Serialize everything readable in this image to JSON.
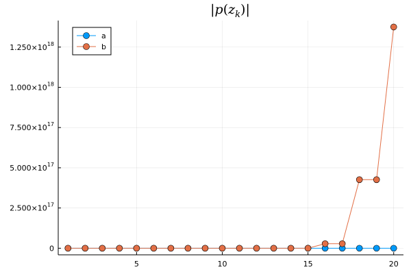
{
  "chart_data": {
    "type": "line",
    "title": "|p(z_k)|",
    "xlabel": "",
    "ylabel": "",
    "x": [
      1,
      2,
      3,
      4,
      5,
      6,
      7,
      8,
      9,
      10,
      11,
      12,
      13,
      14,
      15,
      16,
      17,
      18,
      19,
      20
    ],
    "xlim": [
      0.43,
      20.57
    ],
    "ylim": [
      -4.1e+16,
      1.415e+18
    ],
    "xticks": [
      5,
      10,
      15,
      20
    ],
    "xtick_labels": [
      "5",
      "10",
      "15",
      "20"
    ],
    "yticks": [
      0,
      2.5e+17,
      5e+17,
      7.5e+17,
      1e+18,
      1.25e+18
    ],
    "ytick_labels": [
      {
        "mant": "0",
        "exp": ""
      },
      {
        "mant": "2.500×10",
        "exp": "17"
      },
      {
        "mant": "5.000×10",
        "exp": "17"
      },
      {
        "mant": "7.500×10",
        "exp": "17"
      },
      {
        "mant": "1.000×10",
        "exp": "18"
      },
      {
        "mant": "1.250×10",
        "exp": "18"
      }
    ],
    "grid": true,
    "legend_position": "top-left",
    "series": [
      {
        "name": "a",
        "color": "#009AFA",
        "marker": "circle",
        "values": [
          0,
          0,
          0,
          0,
          0,
          0,
          0,
          0,
          0,
          0,
          0,
          0,
          0,
          0,
          0,
          0,
          0,
          0,
          0,
          0
        ]
      },
      {
        "name": "b",
        "color": "#E26F46",
        "marker": "circle",
        "values": [
          0,
          0,
          0,
          0,
          0,
          0,
          0,
          0,
          0,
          0,
          0,
          0,
          0,
          0,
          100000000000000.0,
          2.8e+16,
          2.8e+16,
          4.26e+17,
          4.26e+17,
          1.375e+18
        ]
      }
    ]
  }
}
